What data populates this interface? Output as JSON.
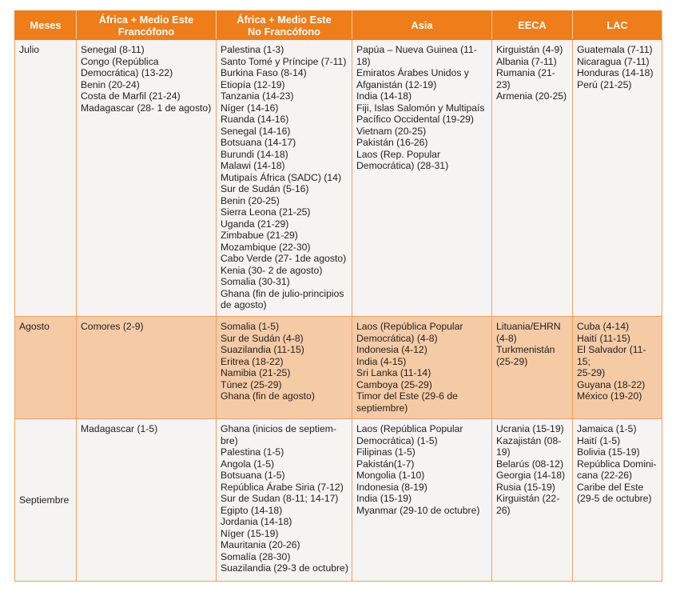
{
  "colors": {
    "header_bg": "#ee7d1a",
    "highlight_row": "#f5cba6",
    "row_bg": "#f6f4f2",
    "border": "#f0a066"
  },
  "headers": [
    "Meses",
    "África + Medio Este\nFrancófono",
    "África + Medio Este\nNo Francófono",
    "Asia",
    "EECA",
    "LAC"
  ],
  "rows": [
    {
      "month": "Julio",
      "cells": [
        "Senegal (8-11)\nCongo (República\nDemocrática) (13-22)\nBenin (20-24)\nCosta de Marfil (21-24)\nMadagascar (28- 1 de agosto)",
        "Palestina (1-3)\nSanto Tomé y Príncipe (7-11)\nBurkina Faso (8-14)\nEtiopía (12-19)\nTanzania (14-23)\nNíger (14-16)\nRuanda (14-16)\nSenegal (14-16)\nBotsuana (14-17)\nBurundi (14-18)\nMalawi (14-18)\nMutipaís África (SADC) (14)\nSur de Sudán (5-16)\nBenin (20-25)\nSierra Leona (21-25)\nUganda (21-29)\nZimbabue (21-29)\nMozambique (22-30)\nCabo Verde (27- 1de agosto)\nKenia (30- 2 de agosto)\nSomalia (30-31)\nGhana (fin de julio-principios\nde agosto)",
        "Papúa – Nueva Guinea (11-18)\nEmiratos Árabes Unidos y\nAfganistán (12-19)\nIndia (14-18)\nFiji, Islas Salomón y Multipaís\nPacífico Occidental (19-29)\nVietnam (20-25)\nPakistán (16-26)\nLaos (Rep. Popular\nDemocrática) (28-31)",
        "Kirguistán (4-9)\nAlbania (7-11)\nRumania (21-23)\nArmenia (20-25)",
        "Guatemala (7-11)\nNicaragua (7-11)\nHonduras (14-18)\nPerú (21-25)"
      ]
    },
    {
      "month": "Agosto",
      "cells": [
        "Comores (2-9)",
        "Somalia (1-5)\nSur de Sudán (4-8)\nSuazilandia (11-15)\nEritrea (18-22)\nNamibia (21-25)\nTúnez (25-29)\nGhana (fin de agosto)",
        "Laos (República Popular\nDemocrática) (4-8)\nIndonesia (4-12)\nIndia (4-15)\nSri Lanka (11-14)\nCamboya (25-29)\nTimor del Este (29-6 de\nseptiembre)",
        "Lituania/EHRN\n(4-8)\nTurkmenistán\n(25-29)",
        "Cuba (4-14)\nHaití (11-15)\nEl Salvador (11-15;\n25-29)\nGuyana (18-22)\nMéxico (19-20)"
      ]
    },
    {
      "month": "Septiembre",
      "cells": [
        "Madagascar (1-5)",
        "Ghana (inicios de septiem-\nbre)\nPalestina (1-5)\nAngola (1-5)\nBotsuana (1-5)\nRepública Árabe Siria (7-12)\nSur de Sudan (8-11; 14-17)\nEgipto (14-18)\nJordania (14-18)\nNíger (15-19)\nMauritania (20-26)\nSomalía (28-30)\nSuazilandia (29-3 de octubre)",
        "Laos (República Popular\nDemocrática) (1-5)\nFilipinas (1-5)\nPakistán(1-7)\nMongolia (1-10)\nIndonesia (8-19)\nIndia (15-19)\nMyanmar (29-10 de octubre)",
        "Ucrania (15-19)\nKazajistán (08-\n19)\nBelarús (08-12)\nGeorgia (14-18)\nRusia (15-19)\nKirguistán (22-26)",
        "Jamaica (1-5)\nHaití (1-5)\nBolivia (15-19)\nRepública Domini-\ncana (22-26)\nCaribe del Este\n(29-5 de octubre)"
      ]
    }
  ]
}
